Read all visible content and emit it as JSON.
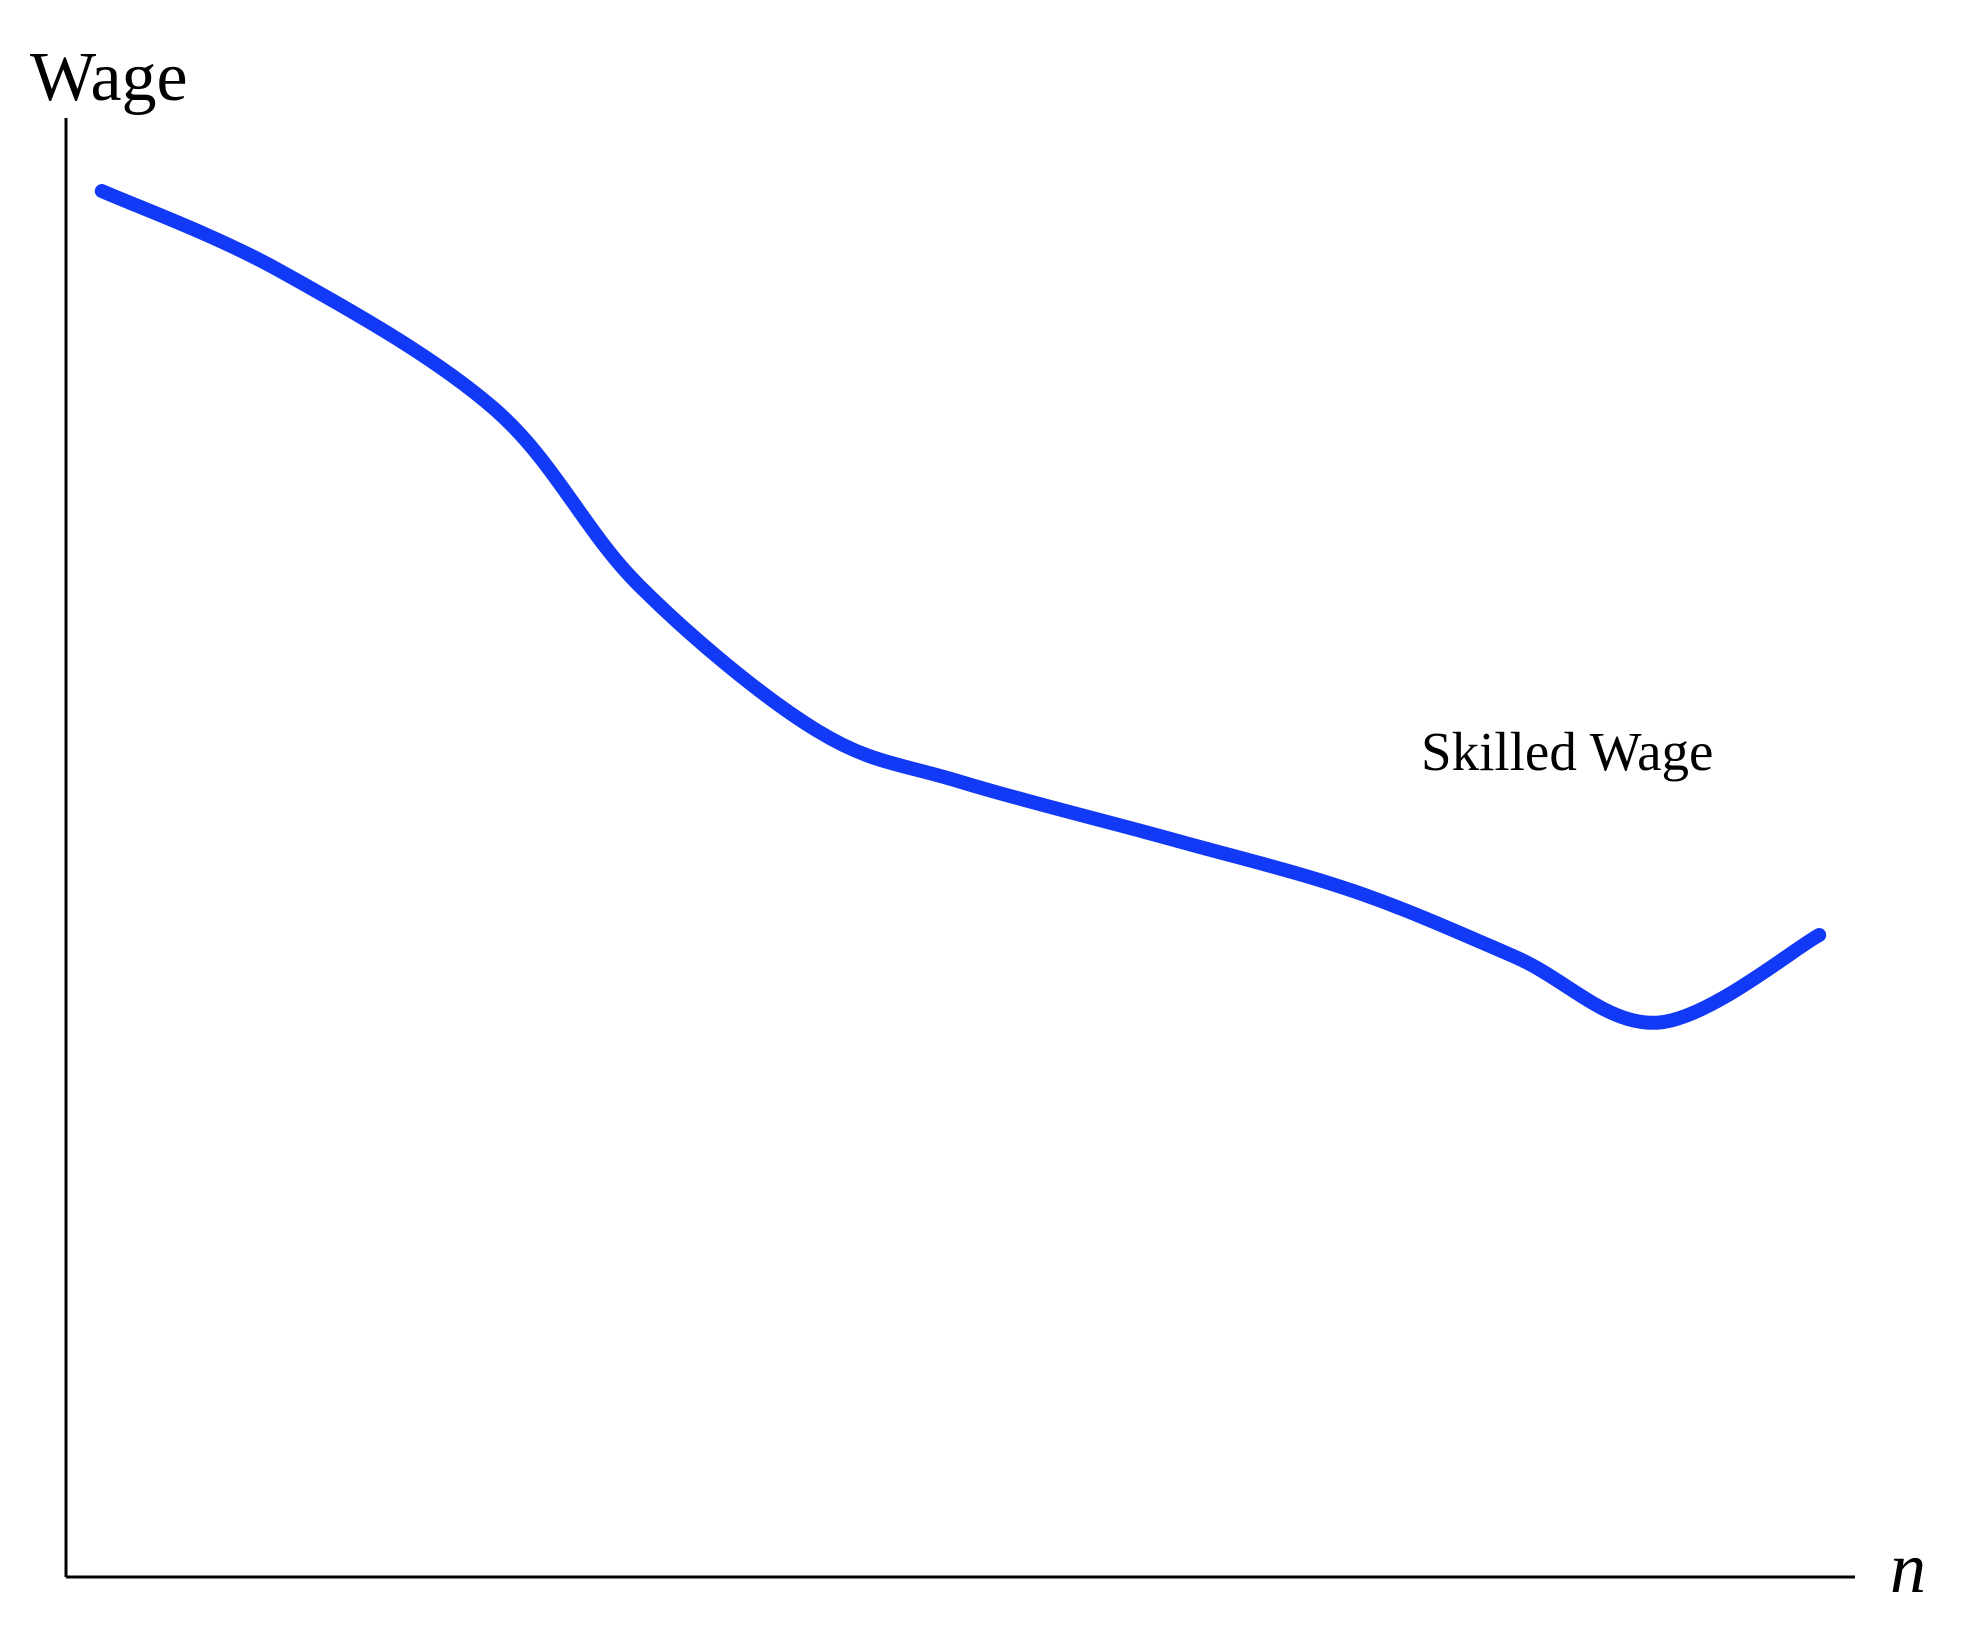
{
  "chart_data": {
    "type": "line",
    "ylabel": "Wage",
    "xlabel": "n",
    "grid": false,
    "xlim": [
      0,
      100
    ],
    "ylim": [
      0,
      100
    ],
    "series": [
      {
        "name": "Skilled Wage",
        "color": "#1239F5",
        "x": [
          2,
          12,
          24,
          32,
          42,
          50,
          62,
          72,
          81,
          89,
          98
        ],
        "y": [
          95,
          89.5,
          80,
          68,
          58,
          54.5,
          50.5,
          47,
          42.5,
          38,
          44
        ]
      }
    ]
  }
}
